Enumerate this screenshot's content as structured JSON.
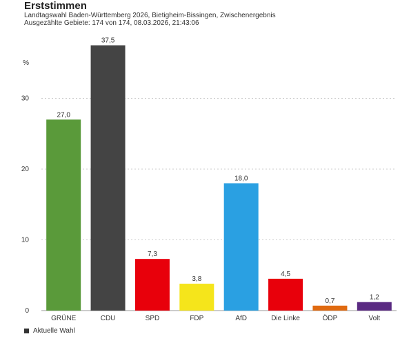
{
  "header": {
    "title": "Erststimmen",
    "subtitle_line1": "Landtagswahl Baden-Württemberg 2026, Bietigheim-Bissingen, Zwischenergebnis",
    "subtitle_line2": "Ausgezählte Gebiete: 174 von 174, 08.03.2026, 21:43:06"
  },
  "legend": {
    "label": "Aktuelle Wahl",
    "color": "#333333"
  },
  "chart_data": {
    "type": "bar",
    "title": "Erststimmen",
    "ylabel": "%",
    "xlabel": "",
    "ylim": [
      0,
      40
    ],
    "yticks": [
      0,
      10,
      20,
      30
    ],
    "grid": true,
    "categories": [
      "GRÜNE",
      "CDU",
      "SPD",
      "FDP",
      "AfD",
      "Die Linke",
      "ÖDP",
      "Volt"
    ],
    "values": [
      27.0,
      37.5,
      7.3,
      3.8,
      18.0,
      4.5,
      0.7,
      1.2
    ],
    "value_labels": [
      "27,0",
      "37,5",
      "7,3",
      "3,8",
      "18,0",
      "4,5",
      "0,7",
      "1,2"
    ],
    "colors": [
      "#5a9a3a",
      "#444444",
      "#e8000b",
      "#f5e51b",
      "#2aa0e2",
      "#e8000b",
      "#e06a10",
      "#5a2a82"
    ],
    "series": [
      {
        "name": "Aktuelle Wahl",
        "values": [
          27.0,
          37.5,
          7.3,
          3.8,
          18.0,
          4.5,
          0.7,
          1.2
        ]
      }
    ]
  }
}
